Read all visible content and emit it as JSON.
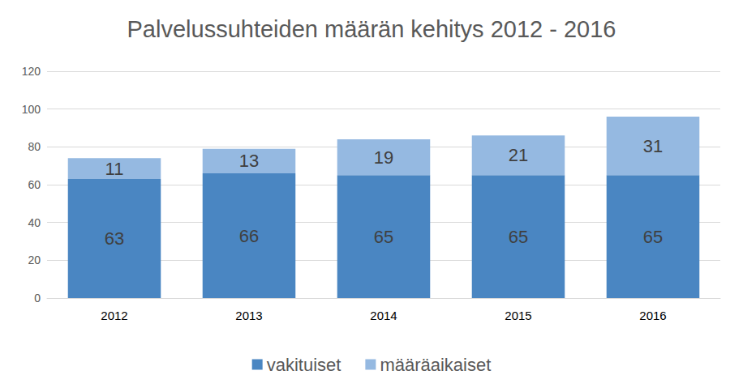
{
  "chart_data": {
    "type": "bar",
    "title": "Palvelussuhteiden määrän kehitys 2012 - 2016",
    "categories": [
      "2012",
      "2013",
      "2014",
      "2015",
      "2016"
    ],
    "series": [
      {
        "name": "vakituiset",
        "color": "#4a86c2",
        "values": [
          63,
          66,
          65,
          65,
          65
        ]
      },
      {
        "name": "määräaikaiset",
        "color": "#95b9e1",
        "values": [
          11,
          13,
          19,
          21,
          31
        ]
      }
    ],
    "ylim": [
      0,
      120
    ],
    "yticks": [
      0,
      20,
      40,
      60,
      80,
      100,
      120
    ],
    "grid": true,
    "legend": "bottom",
    "stacked": true,
    "data_labels": true
  }
}
